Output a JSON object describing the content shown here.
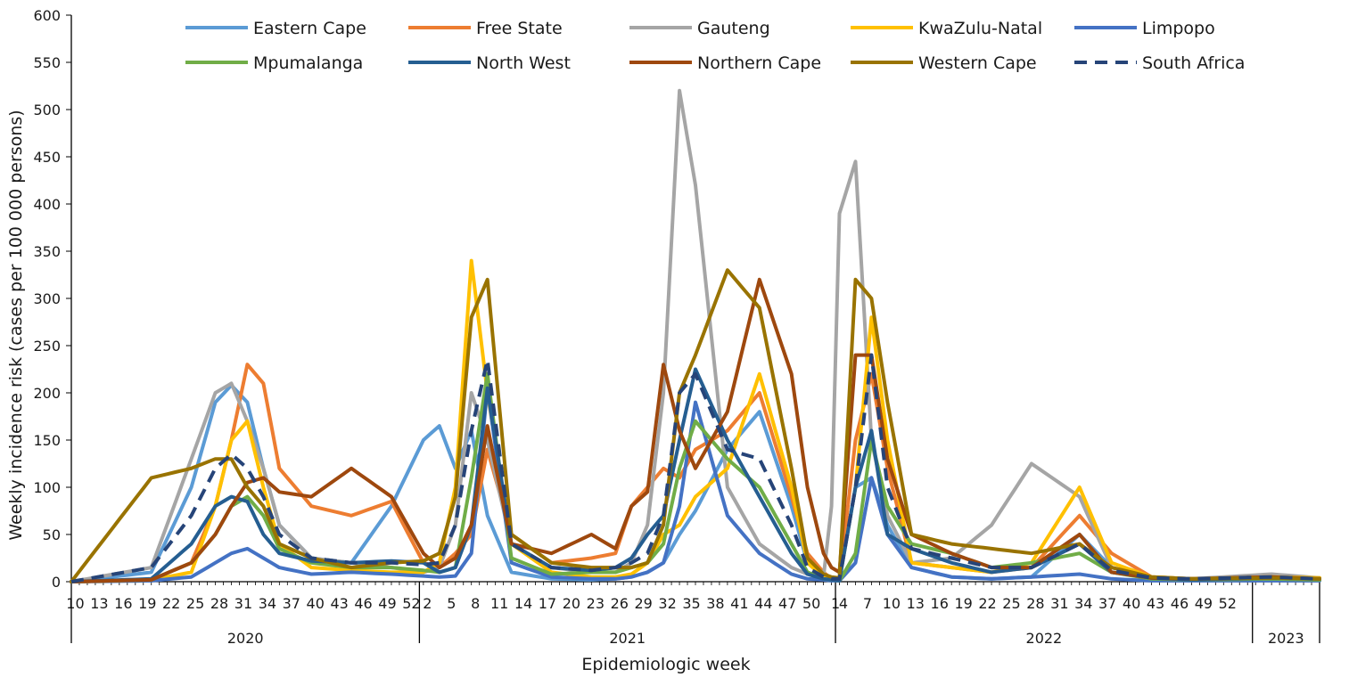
{
  "chart_data": {
    "type": "line",
    "title": "",
    "ylabel": "Weekly incidence risk (cases per 100 000 persons)",
    "xlabel": "Epidemiologic week",
    "ylim": [
      0,
      600
    ],
    "yticks": [
      0,
      50,
      100,
      150,
      200,
      250,
      300,
      350,
      400,
      450,
      500,
      550,
      600
    ],
    "grid": false,
    "legend_position": "top",
    "x_tick_labels": [
      "10",
      "13",
      "16",
      "19",
      "22",
      "25",
      "28",
      "31",
      "34",
      "37",
      "40",
      "43",
      "46",
      "49",
      "52",
      "2",
      "5",
      "8",
      "11",
      "14",
      "17",
      "20",
      "23",
      "26",
      "29",
      "32",
      "35",
      "38",
      "41",
      "44",
      "47",
      "50",
      "1",
      "4",
      "7",
      "10",
      "13",
      "16",
      "19",
      "22",
      "25",
      "28",
      "31",
      "34",
      "37",
      "40",
      "43",
      "46",
      "49",
      "52"
    ],
    "years": [
      {
        "label": "2020",
        "start_week": 10,
        "end_week": 53
      },
      {
        "label": "2021",
        "start_week": 1,
        "end_week": 52
      },
      {
        "label": "2022",
        "start_week": 1,
        "end_week": 52
      },
      {
        "label": "2023",
        "start_week": 1,
        "end_week": 1
      }
    ],
    "x_knots": [
      0,
      10,
      15,
      18,
      20,
      22,
      24,
      26,
      30,
      35,
      40,
      44,
      46,
      48,
      50,
      52,
      55,
      60,
      65,
      68,
      70,
      72,
      74,
      76,
      78,
      82,
      86,
      90,
      92,
      94,
      95,
      96,
      98,
      100,
      102,
      105,
      110,
      115,
      120,
      126,
      130,
      135,
      140,
      150,
      156
    ],
    "series": [
      {
        "name": "Eastern Cape",
        "color": "#5b9bd5",
        "dash": false,
        "values": [
          0,
          10,
          100,
          190,
          208,
          190,
          120,
          60,
          25,
          20,
          80,
          150,
          165,
          120,
          160,
          70,
          10,
          3,
          2,
          3,
          5,
          10,
          20,
          50,
          75,
          140,
          180,
          80,
          20,
          5,
          3,
          2,
          100,
          110,
          60,
          15,
          5,
          3,
          5,
          50,
          15,
          4,
          3,
          4,
          3
        ]
      },
      {
        "name": "Free State",
        "color": "#ed7d31",
        "dash": false,
        "values": [
          0,
          2,
          20,
          80,
          150,
          230,
          210,
          120,
          80,
          70,
          85,
          20,
          15,
          30,
          50,
          140,
          50,
          20,
          25,
          30,
          80,
          100,
          120,
          110,
          140,
          160,
          200,
          90,
          30,
          10,
          3,
          2,
          150,
          220,
          120,
          20,
          15,
          10,
          15,
          70,
          30,
          5,
          3,
          4,
          3
        ]
      },
      {
        "name": "Gauteng",
        "color": "#a5a5a5",
        "dash": false,
        "values": [
          0,
          15,
          130,
          200,
          210,
          170,
          120,
          60,
          25,
          20,
          15,
          10,
          15,
          60,
          200,
          150,
          40,
          15,
          10,
          10,
          20,
          60,
          200,
          520,
          420,
          100,
          40,
          15,
          8,
          5,
          80,
          390,
          445,
          150,
          70,
          20,
          25,
          60,
          125,
          90,
          15,
          5,
          3,
          8,
          4
        ]
      },
      {
        "name": "KwaZulu-Natal",
        "color": "#ffc000",
        "dash": false,
        "values": [
          0,
          2,
          10,
          80,
          150,
          170,
          100,
          40,
          15,
          12,
          10,
          10,
          20,
          100,
          340,
          200,
          40,
          10,
          5,
          5,
          8,
          20,
          50,
          60,
          90,
          120,
          220,
          100,
          20,
          5,
          3,
          2,
          100,
          280,
          150,
          20,
          15,
          10,
          20,
          100,
          20,
          5,
          3,
          5,
          4
        ]
      },
      {
        "name": "Limpopo",
        "color": "#4472c4",
        "dash": false,
        "values": [
          0,
          1,
          5,
          20,
          30,
          35,
          25,
          15,
          8,
          10,
          8,
          6,
          5,
          6,
          30,
          205,
          20,
          5,
          3,
          3,
          5,
          10,
          20,
          80,
          190,
          70,
          30,
          8,
          3,
          2,
          1,
          1,
          20,
          110,
          50,
          15,
          5,
          3,
          5,
          8,
          3,
          1,
          1,
          1,
          1
        ]
      },
      {
        "name": "Mpumalanga",
        "color": "#70ad47",
        "dash": false,
        "values": [
          0,
          2,
          20,
          50,
          80,
          90,
          70,
          35,
          20,
          15,
          15,
          12,
          10,
          15,
          110,
          220,
          25,
          8,
          10,
          10,
          15,
          20,
          40,
          120,
          170,
          130,
          100,
          40,
          10,
          3,
          2,
          1,
          30,
          150,
          80,
          40,
          30,
          15,
          20,
          30,
          10,
          3,
          2,
          3,
          2
        ]
      },
      {
        "name": "North West",
        "color": "#255e91",
        "dash": false,
        "values": [
          0,
          3,
          40,
          80,
          90,
          85,
          50,
          30,
          22,
          20,
          22,
          20,
          10,
          15,
          60,
          205,
          40,
          15,
          12,
          15,
          25,
          50,
          70,
          150,
          225,
          150,
          90,
          30,
          8,
          3,
          2,
          1,
          100,
          160,
          50,
          35,
          20,
          10,
          15,
          40,
          10,
          4,
          2,
          4,
          3
        ]
      },
      {
        "name": "Northern Cape",
        "color": "#9e480e",
        "dash": false,
        "values": [
          0,
          2,
          20,
          50,
          80,
          105,
          110,
          95,
          90,
          120,
          90,
          30,
          15,
          25,
          60,
          165,
          40,
          30,
          50,
          35,
          80,
          95,
          230,
          160,
          120,
          180,
          320,
          220,
          100,
          30,
          15,
          10,
          240,
          240,
          130,
          50,
          30,
          15,
          15,
          50,
          10,
          4,
          3,
          5,
          3
        ]
      },
      {
        "name": "Western Cape",
        "color": "#997300",
        "dash": false,
        "values": [
          0,
          110,
          120,
          130,
          130,
          100,
          80,
          40,
          25,
          15,
          20,
          22,
          30,
          90,
          280,
          320,
          50,
          20,
          15,
          15,
          15,
          20,
          60,
          200,
          240,
          330,
          290,
          120,
          25,
          8,
          5,
          4,
          320,
          300,
          190,
          50,
          40,
          35,
          30,
          40,
          15,
          5,
          3,
          4,
          3
        ]
      },
      {
        "name": "South Africa",
        "color": "#264478",
        "dash": true,
        "values": [
          0,
          15,
          70,
          120,
          135,
          120,
          90,
          50,
          25,
          20,
          20,
          18,
          20,
          60,
          160,
          235,
          40,
          15,
          12,
          15,
          20,
          30,
          70,
          200,
          220,
          140,
          130,
          60,
          15,
          5,
          3,
          3,
          100,
          240,
          100,
          35,
          25,
          15,
          15,
          40,
          12,
          4,
          3,
          5,
          3
        ]
      }
    ]
  }
}
